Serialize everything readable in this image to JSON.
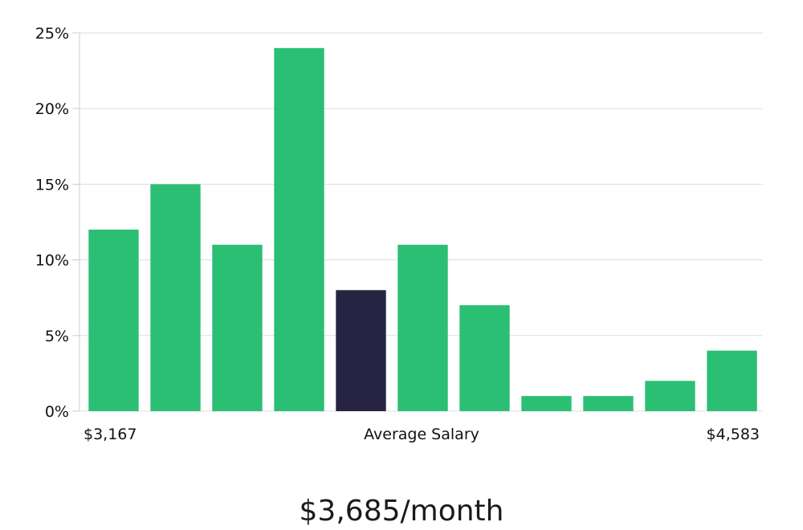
{
  "chart_data": {
    "type": "bar",
    "title": "",
    "xlabel": "Average Salary",
    "ylabel": "",
    "x_range_labels": {
      "min": "$3,167",
      "max": "$4,583"
    },
    "values": [
      12,
      15,
      11,
      24,
      8,
      11,
      7,
      1,
      1,
      2,
      4
    ],
    "highlight_index": 4,
    "ylim": [
      0,
      25
    ],
    "yticks": [
      0,
      5,
      10,
      15,
      20,
      25
    ],
    "ytick_labels": [
      "0%",
      "5%",
      "10%",
      "15%",
      "20%",
      "25%"
    ],
    "grid": true,
    "colors": {
      "bar": "#2bbf74",
      "highlight": "#272443",
      "grid": "#dddddd",
      "axis": "#cccccc"
    }
  },
  "summary": {
    "average_salary": "$3,685/month"
  }
}
